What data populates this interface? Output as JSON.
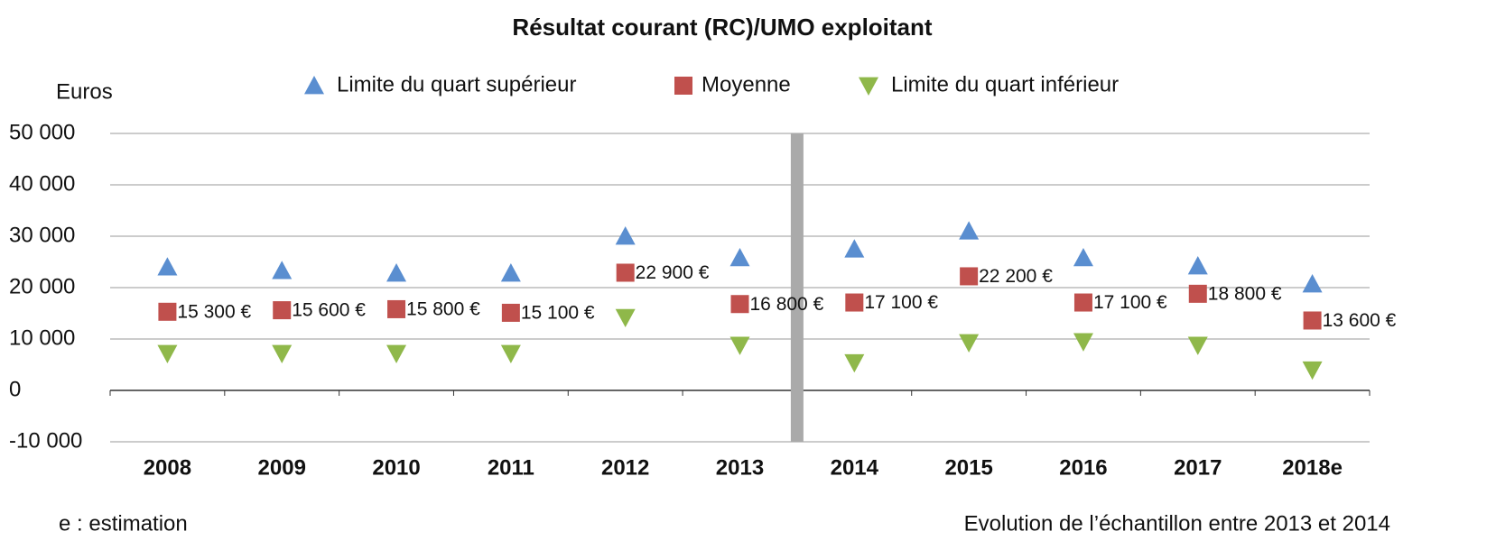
{
  "chart_data": {
    "type": "scatter",
    "title": "Résultat courant (RC)/UMO exploitant",
    "y_label": "Euros",
    "annotations": [
      "e : estimation",
      "Evolution de l’échantillon entre 2013 et 2014"
    ],
    "categories": [
      "2008",
      "2009",
      "2010",
      "2011",
      "2012",
      "2013",
      "2014",
      "2015",
      "2016",
      "2017",
      "2018e"
    ],
    "series": [
      {
        "name": "Limite du quart supérieur",
        "color": "#5a8ed0",
        "marker": "triangle-up",
        "values": [
          24000,
          23300,
          22800,
          22800,
          30000,
          25800,
          27500,
          31000,
          25800,
          24200,
          20700
        ]
      },
      {
        "name": "Moyenne",
        "color": "#c0504d",
        "marker": "square",
        "values": [
          15300,
          15600,
          15800,
          15100,
          22900,
          16800,
          17100,
          22200,
          17100,
          18800,
          13600
        ],
        "value_labels": [
          "15 300 €",
          "15 600 €",
          "15 800 €",
          "15 100 €",
          "22 900 €",
          "16 800 €",
          "17 100 €",
          "22 200 €",
          "17 100 €",
          "18 800 €",
          "13 600 €"
        ]
      },
      {
        "name": "Limite du quart inférieur",
        "color": "#8fb84a",
        "marker": "triangle-down",
        "values": [
          7200,
          7200,
          7200,
          7200,
          14200,
          8800,
          5400,
          9300,
          9500,
          8800,
          4000
        ]
      }
    ],
    "ylim": [
      -10000,
      50000
    ],
    "yticks": [
      {
        "value": -10000,
        "label": "-10 000"
      },
      0,
      {
        "value": 10000,
        "label": "10 000"
      },
      {
        "value": 20000,
        "label": "20 000"
      },
      {
        "value": 30000,
        "label": "30 000"
      },
      {
        "value": 40000,
        "label": "40 000"
      },
      {
        "value": 50000,
        "label": "50 000"
      }
    ],
    "grid": true
  }
}
